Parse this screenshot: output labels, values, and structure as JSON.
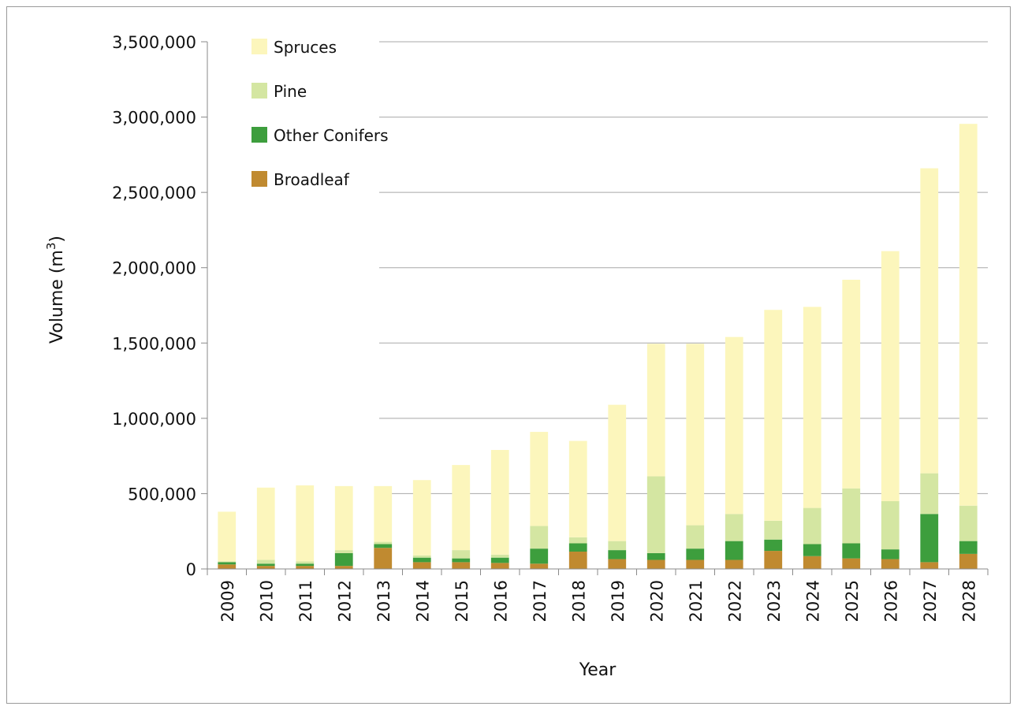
{
  "chart_data": {
    "type": "bar",
    "stacked": true,
    "title": "",
    "xlabel": "Year",
    "ylabel": "Volume (m",
    "ylabel_sup": "3",
    "ylabel_end": ")",
    "ylim": [
      0,
      3500000
    ],
    "grid": true,
    "legend_position": "top-left",
    "categories": [
      "2009",
      "2010",
      "2011",
      "2012",
      "2013",
      "2014",
      "2015",
      "2016",
      "2017",
      "2018",
      "2019",
      "2020",
      "2021",
      "2022",
      "2023",
      "2024",
      "2025",
      "2026",
      "2027",
      "2028"
    ],
    "yticks": [
      0,
      500000,
      1000000,
      1500000,
      2000000,
      2500000,
      3000000,
      3500000
    ],
    "ytick_labels": [
      "0",
      "500,000",
      "1,000,000",
      "1,500,000",
      "2,000,000",
      "2,500,000",
      "3,000,000",
      "3,500,000"
    ],
    "series": [
      {
        "name": "Broadleaf",
        "color": "#c08a30",
        "values": [
          30000,
          20000,
          20000,
          20000,
          140000,
          45000,
          45000,
          40000,
          35000,
          115000,
          65000,
          60000,
          60000,
          60000,
          120000,
          85000,
          70000,
          65000,
          45000,
          100000
        ]
      },
      {
        "name": "Other Conifers",
        "color": "#3d9e3d",
        "values": [
          15000,
          15000,
          15000,
          85000,
          25000,
          30000,
          25000,
          35000,
          100000,
          55000,
          60000,
          45000,
          75000,
          125000,
          75000,
          80000,
          100000,
          65000,
          320000,
          85000
        ]
      },
      {
        "name": "Pine",
        "color": "#d4e6a2",
        "values": [
          5000,
          25000,
          15000,
          20000,
          15000,
          15000,
          55000,
          20000,
          150000,
          40000,
          60000,
          510000,
          155000,
          180000,
          125000,
          240000,
          365000,
          320000,
          270000,
          235000
        ]
      },
      {
        "name": "Spruces",
        "color": "#fcf6bc",
        "values": [
          330000,
          480000,
          505000,
          425000,
          370000,
          500000,
          565000,
          695000,
          625000,
          640000,
          905000,
          880000,
          1205000,
          1175000,
          1400000,
          1335000,
          1385000,
          1660000,
          2025000,
          2535000
        ]
      }
    ]
  }
}
